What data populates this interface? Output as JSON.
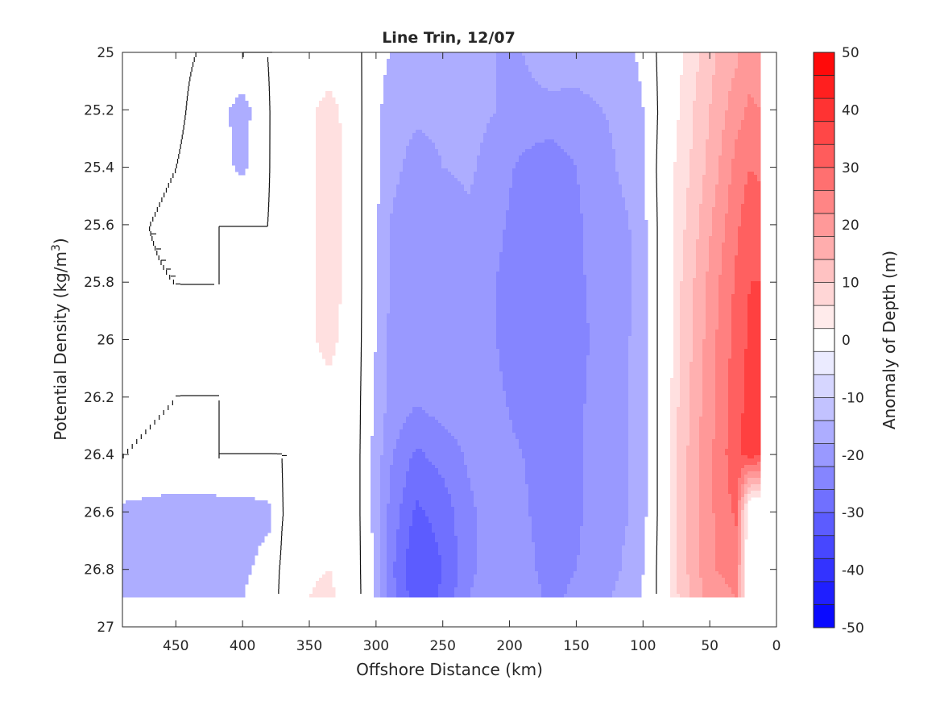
{
  "chart_data": {
    "type": "heatmap",
    "subtype": "filled-contour",
    "title": "Line Trin, 12/07",
    "xlabel": "Offshore Distance (km)",
    "ylabel_main": "Potential Density (kg/m",
    "ylabel_sup": "3",
    "ylabel_close": ")",
    "colorbar_label": "Anomaly of Depth (m)",
    "xlim": [
      490,
      0
    ],
    "x_reversed": true,
    "ylim": [
      25,
      27
    ],
    "y_reversed": true,
    "xticks": [
      450,
      400,
      350,
      300,
      250,
      200,
      150,
      100,
      50,
      0
    ],
    "xtick_labels": [
      "450",
      "400",
      "350",
      "300",
      "250",
      "200",
      "150",
      "100",
      "50",
      "0"
    ],
    "yticks": [
      25,
      25.2,
      25.4,
      25.6,
      25.8,
      26,
      26.2,
      26.4,
      26.6,
      26.8,
      27
    ],
    "ytick_labels": [
      "25",
      "25.2",
      "25.4",
      "25.6",
      "25.8",
      "26",
      "26.2",
      "26.4",
      "26.6",
      "26.8",
      "27"
    ],
    "clim": [
      -50,
      50
    ],
    "colorbar_ticks": [
      50,
      40,
      30,
      20,
      10,
      0,
      -10,
      -20,
      -30,
      -40,
      -50
    ],
    "colorbar_tick_labels": [
      "50",
      "40",
      "30",
      "20",
      "10",
      "0",
      "-10",
      "-20",
      "-30",
      "-40",
      "-50"
    ],
    "contour_levels": [
      -50,
      -45,
      -40,
      -35,
      -30,
      -25,
      -20,
      -15,
      -10,
      -5,
      0,
      5,
      10,
      15,
      20,
      25,
      30,
      35,
      40,
      45,
      50
    ],
    "level_colors": [
      "#0a0aff",
      "#1f1fff",
      "#3333ff",
      "#4747ff",
      "#5c5cff",
      "#7070ff",
      "#8585ff",
      "#9999ff",
      "#adadff",
      "#c2c2ff",
      "#d6d6ff",
      "#ebebff",
      "#ffffff",
      "#ffebeb",
      "#ffd6d6",
      "#ffc2c2",
      "#ffadad",
      "#ff9999",
      "#ff8585",
      "#ff7070",
      "#ff5c5c",
      "#ff4747",
      "#ff3333",
      "#ff1f1f",
      "#ff0a0a"
    ],
    "grid": false,
    "zero_contour_shown": true,
    "x": [
      490,
      450,
      420,
      400,
      380,
      370,
      350,
      335,
      320,
      310,
      300,
      290,
      270,
      250,
      230,
      210,
      190,
      170,
      150,
      130,
      110,
      95,
      85,
      75,
      60,
      45,
      30,
      20,
      12
    ],
    "y": [
      25.0,
      25.2,
      25.4,
      25.6,
      25.8,
      26.0,
      26.2,
      26.4,
      26.6,
      26.8,
      26.9
    ],
    "z": [
      [
        3,
        1,
        -1,
        0,
        0,
        2,
        7,
        6,
        7,
        -1,
        -2,
        -5,
        -7,
        -8,
        -8,
        -10,
        -10,
        -6,
        -7,
        -6,
        -6,
        -2,
        2,
        8,
        14,
        20,
        24,
        28,
        26
      ],
      [
        2,
        1,
        -3,
        -7,
        0,
        2,
        9,
        12,
        8,
        -1,
        -3,
        -8,
        -9,
        -9,
        -8,
        -10,
        -12,
        -12,
        -12,
        -10,
        -9,
        -3,
        2,
        9,
        16,
        22,
        28,
        31,
        30
      ],
      [
        2,
        0,
        -3,
        -6,
        0,
        2,
        9,
        13,
        8,
        -1,
        -4,
        -8,
        -12,
        -10,
        -9,
        -13,
        -16,
        -18,
        -15,
        -11,
        -9,
        -3,
        3,
        11,
        17,
        24,
        32,
        35,
        34
      ],
      [
        1,
        -1,
        0,
        0,
        0,
        2,
        9,
        13,
        8,
        -1,
        -4,
        -10,
        -15,
        -13,
        -11,
        -14,
        -17,
        -18,
        -16,
        -12,
        -10,
        -4,
        3,
        12,
        19,
        27,
        34,
        38,
        38
      ],
      [
        1,
        0,
        0,
        0,
        0,
        2,
        9,
        13,
        8,
        -1,
        -4,
        -10,
        -14,
        -13,
        -12,
        -15,
        -18,
        -19,
        -16,
        -13,
        -11,
        -4,
        3,
        13,
        21,
        29,
        36,
        40,
        40
      ],
      [
        1,
        0,
        0,
        0,
        0,
        2,
        9,
        12,
        7,
        -1,
        -5,
        -11,
        -14,
        -13,
        -12,
        -15,
        -18,
        -19,
        -16,
        -14,
        -10,
        -4,
        3,
        13,
        22,
        30,
        37,
        41,
        41
      ],
      [
        1,
        0,
        0,
        0,
        0,
        1,
        7,
        8,
        5,
        -1,
        -6,
        -11,
        -14,
        -12,
        -12,
        -14,
        -17,
        -18,
        -16,
        -13,
        -10,
        -4,
        3,
        14,
        23,
        31,
        38,
        42,
        41
      ],
      [
        0,
        -1,
        0,
        0,
        0,
        0,
        6,
        7,
        4,
        -1,
        -7,
        -14,
        -21,
        -18,
        -14,
        -13,
        -15,
        -18,
        -16,
        -12,
        -10,
        -4,
        3,
        15,
        24,
        31,
        39,
        42,
        41
      ],
      [
        -6,
        -7,
        -7,
        -7,
        -6,
        0,
        6,
        7,
        4,
        -1,
        -7,
        -16,
        -26,
        -23,
        -16,
        -12,
        -14,
        -18,
        -16,
        -12,
        -10,
        -4,
        3,
        15,
        24,
        31,
        36,
        0,
        0
      ],
      [
        -9,
        -7,
        -6,
        -6,
        -3,
        1,
        9,
        10,
        5,
        -1,
        -6,
        -18,
        -30,
        -25,
        -16,
        -12,
        -13,
        -17,
        -15,
        -12,
        -9,
        -3,
        3,
        15,
        24,
        30,
        32,
        0,
        0
      ],
      [
        -10,
        -8,
        -6,
        -5,
        -2,
        1,
        10,
        12,
        6,
        -1,
        -6,
        -17,
        -28,
        -24,
        -15,
        -11,
        -12,
        -16,
        -14,
        -11,
        -8,
        -3,
        3,
        14,
        23,
        28,
        30,
        0,
        0
      ]
    ]
  }
}
